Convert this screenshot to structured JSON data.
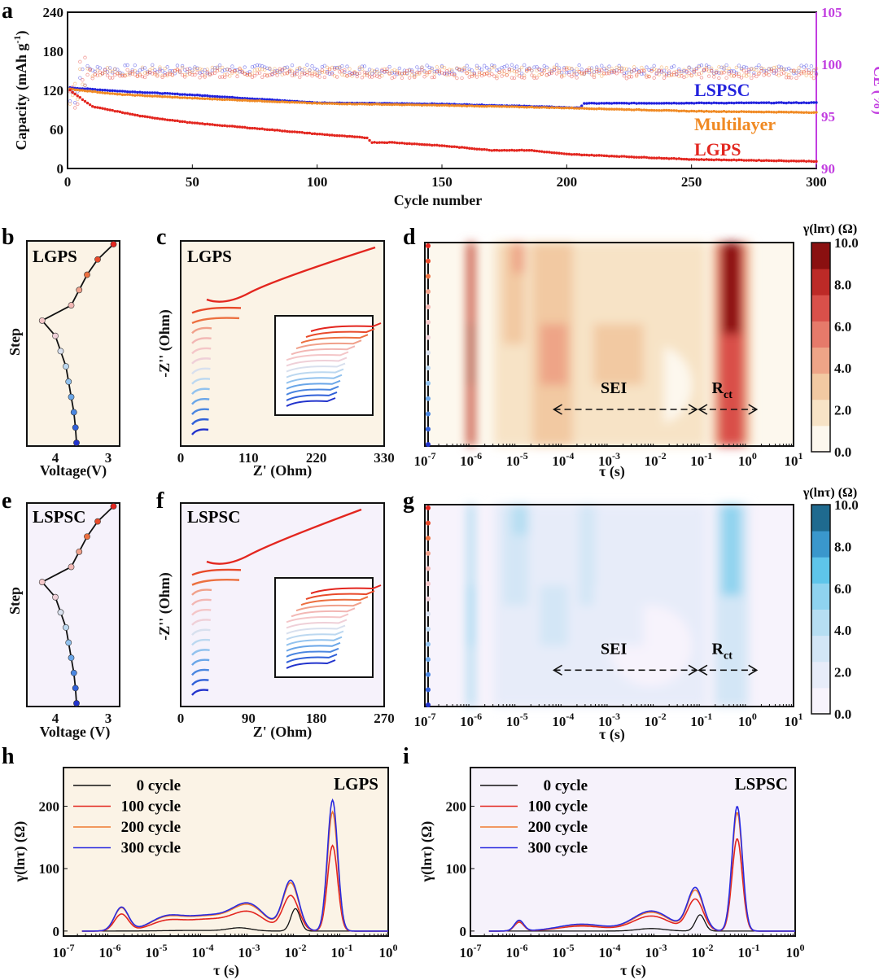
{
  "panel_labels": [
    "a",
    "b",
    "c",
    "d",
    "e",
    "f",
    "g",
    "h",
    "i"
  ],
  "colors": {
    "lgps": "#e3261f",
    "lspsc": "#2222dd",
    "multilayer": "#f08a24",
    "ce_axis": "#c23ee0",
    "bg_warm": "#fbf3e6",
    "bg_cool": "#f6f2fb",
    "black": "#000000"
  },
  "chart_data": [
    {
      "id": "a",
      "type": "scatter",
      "xlabel": "Cycle number",
      "ylabel": "Capacity (mAh g-1)",
      "ylabel_main": "Capacity (mAh g",
      "ylabel_sup": "-1",
      "ylabel_end": ")",
      "y2label": "CE (%)",
      "xlim": [
        0,
        300
      ],
      "ylim": [
        0,
        240
      ],
      "y2lim": [
        90,
        105
      ],
      "xticks": [
        "0",
        "50",
        "100",
        "150",
        "200",
        "250",
        "300"
      ],
      "yticks": [
        "0",
        "60",
        "120",
        "180",
        "240"
      ],
      "y2ticks": [
        "90",
        "95",
        "100",
        "105"
      ],
      "series": [
        {
          "name": "LSPSC",
          "color": "#2222dd",
          "capacity_keypoints": [
            [
              1,
              124
            ],
            [
              20,
              119
            ],
            [
              50,
              113
            ],
            [
              100,
              101
            ],
            [
              150,
              99
            ],
            [
              190,
              95
            ],
            [
              205,
              93
            ],
            [
              207,
              100
            ],
            [
              300,
              101
            ]
          ],
          "ce_mean": 99.5
        },
        {
          "name": "Multilayer",
          "color": "#f08a24",
          "capacity_keypoints": [
            [
              1,
              122
            ],
            [
              20,
              114
            ],
            [
              50,
              108
            ],
            [
              100,
              100
            ],
            [
              150,
              97
            ],
            [
              200,
              93
            ],
            [
              250,
              88
            ],
            [
              300,
              86
            ]
          ],
          "ce_mean": 99.3
        },
        {
          "name": "LGPS",
          "color": "#e3261f",
          "capacity_keypoints": [
            [
              1,
              120
            ],
            [
              10,
              95
            ],
            [
              30,
              80
            ],
            [
              50,
              70
            ],
            [
              80,
              60
            ],
            [
              100,
              53
            ],
            [
              120,
              47
            ],
            [
              122,
              40
            ],
            [
              130,
              40
            ],
            [
              150,
              35
            ],
            [
              170,
              28
            ],
            [
              185,
              28
            ],
            [
              200,
              22
            ],
            [
              250,
              14
            ],
            [
              300,
              11
            ]
          ],
          "ce_mean": 99.1
        }
      ]
    },
    {
      "id": "b",
      "type": "line",
      "title": "LGPS",
      "xlabel": "Voltage(V)",
      "ylabel": "Step",
      "xticks": [
        "4",
        "3"
      ],
      "points": [
        [
          2.9,
          0
        ],
        [
          3.2,
          1
        ],
        [
          3.4,
          2
        ],
        [
          3.55,
          3
        ],
        [
          3.7,
          4
        ],
        [
          4.25,
          5
        ],
        [
          4.0,
          6
        ],
        [
          3.9,
          7
        ],
        [
          3.8,
          8
        ],
        [
          3.75,
          9
        ],
        [
          3.7,
          10
        ],
        [
          3.65,
          11
        ],
        [
          3.62,
          12
        ],
        [
          3.6,
          13
        ]
      ]
    },
    {
      "id": "c",
      "type": "line",
      "title": "LGPS",
      "xlabel": "Z' (Ohm)",
      "ylabel": "-Z'' (Ohm)",
      "xlim": [
        0,
        330
      ],
      "xticks": [
        "0",
        "110",
        "220",
        "330"
      ],
      "steps": 14
    },
    {
      "id": "d",
      "type": "heatmap",
      "xlabel": "τ (s)",
      "colorbar_title": "γ(lnτ) (Ω)",
      "xlim_log10": [
        -7,
        1
      ],
      "xtick_exponents": [
        "-7",
        "-6",
        "-5",
        "-4",
        "-3",
        "-2",
        "-1",
        "0",
        "1"
      ],
      "colorbar_ticks": [
        "0.0",
        "2.0",
        "4.0",
        "6.0",
        "8.0",
        "10.0"
      ],
      "zlim": [
        0,
        10
      ],
      "colormap": [
        "#fdf8ee",
        "#f7e3c6",
        "#f2c9a2",
        "#eea487",
        "#e67a6a",
        "#d9504a",
        "#bd2a27",
        "#8a1010"
      ],
      "annotations": {
        "sei": "SEI",
        "rct_main": "R",
        "rct_sub": "ct"
      },
      "peaks": [
        [
          -6.0,
          10,
          0.08
        ],
        [
          -4.2,
          4,
          0.5
        ],
        [
          -2.8,
          3,
          0.9
        ],
        [
          -0.35,
          10,
          0.3
        ]
      ]
    },
    {
      "id": "e",
      "type": "line",
      "title": "LSPSC",
      "xlabel": "Voltage (V)",
      "ylabel": "Step",
      "xticks": [
        "4",
        "3"
      ],
      "points": [
        [
          2.9,
          0
        ],
        [
          3.2,
          1
        ],
        [
          3.4,
          2
        ],
        [
          3.55,
          3
        ],
        [
          3.7,
          4
        ],
        [
          4.25,
          5
        ],
        [
          4.0,
          6
        ],
        [
          3.9,
          7
        ],
        [
          3.8,
          8
        ],
        [
          3.75,
          9
        ],
        [
          3.7,
          10
        ],
        [
          3.65,
          11
        ],
        [
          3.62,
          12
        ],
        [
          3.6,
          13
        ]
      ]
    },
    {
      "id": "f",
      "type": "line",
      "title": "LSPSC",
      "xlabel": "Z' (Ohm)",
      "ylabel": "-Z'' (Ohm)",
      "xlim": [
        0,
        270
      ],
      "xticks": [
        "0",
        "90",
        "180",
        "270"
      ],
      "steps": 14
    },
    {
      "id": "g",
      "type": "heatmap",
      "xlabel": "τ (s)",
      "colorbar_title": "γ(lnτ) (Ω)",
      "xlim_log10": [
        -7,
        1
      ],
      "xtick_exponents": [
        "-7",
        "-6",
        "-5",
        "-4",
        "-3",
        "-2",
        "-1",
        "0",
        "1"
      ],
      "colorbar_ticks": [
        "0.0",
        "2.0",
        "4.0",
        "6.0",
        "8.0",
        "10.0"
      ],
      "zlim": [
        0,
        10
      ],
      "colormap": [
        "#f7f3fc",
        "#e7ecf9",
        "#d3e6f6",
        "#b6def2",
        "#8fd3ef",
        "#5ec5ea",
        "#3a97cc",
        "#1f6a8f"
      ],
      "annotations": {
        "sei": "SEI",
        "rct_main": "R",
        "rct_sub": "ct"
      },
      "peaks": [
        [
          -6.0,
          6,
          0.08
        ],
        [
          -4.2,
          2.5,
          0.5
        ],
        [
          -2.8,
          1.5,
          0.9
        ],
        [
          -0.35,
          5,
          0.3
        ]
      ]
    },
    {
      "id": "h",
      "type": "line",
      "title": "LGPS",
      "xlabel": "τ (s)",
      "ylabel": "γ(lnτ) (Ω)",
      "xlim_log10": [
        -7,
        0
      ],
      "xtick_exponents": [
        "-7",
        "-6",
        "-5",
        "-4",
        "-3",
        "-2",
        "-1",
        "0"
      ],
      "ylim": [
        -8,
        262
      ],
      "yticks": [
        "0",
        "100",
        "200"
      ],
      "series": [
        {
          "name": "0 cycle",
          "color": "#111111",
          "peaks": [
            [
              -3.2,
              5,
              0.25
            ],
            [
              -2.0,
              36,
              0.1
            ],
            [
              -4.2,
              1,
              0.6
            ]
          ]
        },
        {
          "name": "100 cycle",
          "color": "#e3261f",
          "peaks": [
            [
              -5.75,
              27,
              0.15
            ],
            [
              -4.8,
              14,
              0.35
            ],
            [
              -3.9,
              18,
              0.5
            ],
            [
              -3.0,
              28,
              0.35
            ],
            [
              -2.1,
              56,
              0.17
            ],
            [
              -1.2,
              137,
              0.11
            ]
          ]
        },
        {
          "name": "200 cycle",
          "color": "#f07a30",
          "peaks": [
            [
              -5.75,
              37,
              0.15
            ],
            [
              -4.8,
              19,
              0.35
            ],
            [
              -3.9,
              23,
              0.5
            ],
            [
              -3.0,
              38,
              0.35
            ],
            [
              -2.1,
              76,
              0.17
            ],
            [
              -1.2,
              191,
              0.11
            ]
          ]
        },
        {
          "name": "300 cycle",
          "color": "#2a2ae0",
          "peaks": [
            [
              -5.75,
              38,
              0.15
            ],
            [
              -4.8,
              20,
              0.35
            ],
            [
              -3.9,
              24,
              0.5
            ],
            [
              -3.0,
              40,
              0.35
            ],
            [
              -2.1,
              80,
              0.17
            ],
            [
              -1.2,
              210,
              0.11
            ]
          ]
        }
      ]
    },
    {
      "id": "i",
      "type": "line",
      "title": "LSPSC",
      "xlabel": "τ (s)",
      "ylabel": "γ(lnτ) (Ω)",
      "xlim_log10": [
        -7,
        0
      ],
      "xtick_exponents": [
        "-7",
        "-6",
        "-5",
        "-4",
        "-3",
        "-2",
        "-1",
        "0"
      ],
      "ylim": [
        -8,
        262
      ],
      "yticks": [
        "0",
        "100",
        "200"
      ],
      "series": [
        {
          "name": "0 cycle",
          "color": "#111111",
          "peaks": [
            [
              -3.1,
              4,
              0.3
            ],
            [
              -2.05,
              26,
              0.1
            ]
          ]
        },
        {
          "name": "100 cycle",
          "color": "#e3261f",
          "peaks": [
            [
              -5.95,
              14,
              0.1
            ],
            [
              -4.6,
              8,
              0.5
            ],
            [
              -3.1,
              24,
              0.4
            ],
            [
              -2.15,
              50,
              0.17
            ],
            [
              -1.25,
              148,
              0.11
            ]
          ]
        },
        {
          "name": "200 cycle",
          "color": "#f07a30",
          "peaks": [
            [
              -5.95,
              16,
              0.1
            ],
            [
              -4.6,
              10,
              0.5
            ],
            [
              -3.1,
              30,
              0.4
            ],
            [
              -2.15,
              64,
              0.17
            ],
            [
              -1.25,
              190,
              0.11
            ]
          ]
        },
        {
          "name": "300 cycle",
          "color": "#2a2ae0",
          "peaks": [
            [
              -5.95,
              17,
              0.1
            ],
            [
              -4.6,
              11,
              0.5
            ],
            [
              -3.1,
              32,
              0.4
            ],
            [
              -2.15,
              68,
              0.17
            ],
            [
              -1.25,
              200,
              0.11
            ]
          ]
        }
      ]
    }
  ]
}
